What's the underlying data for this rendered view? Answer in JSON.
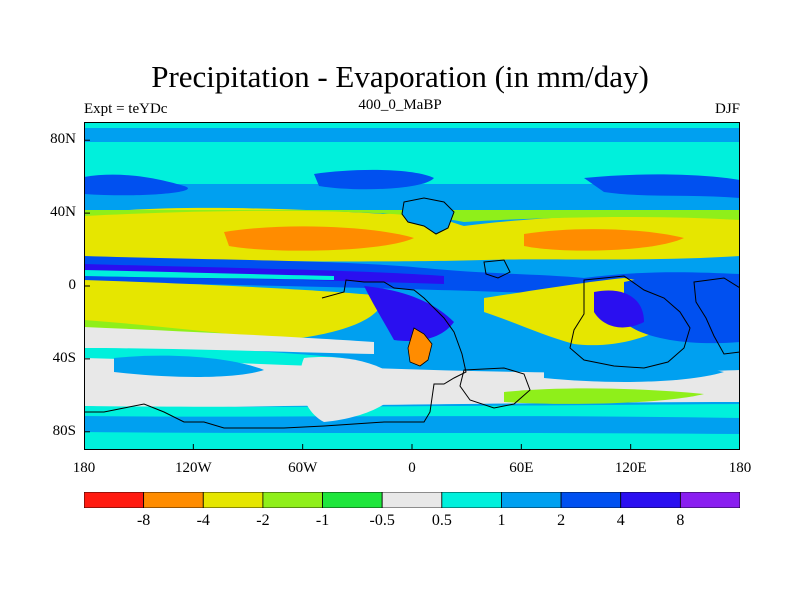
{
  "title": "Precipitation - Evaporation (in mm/day)",
  "left_label": "Expt = teYDc",
  "center_label": "400_0_MaBP",
  "right_label": "DJF",
  "map": {
    "lon_range": [
      -180,
      180
    ],
    "lat_range": [
      -90,
      90
    ],
    "y_ticks": [
      {
        "label": "80N",
        "lat": 80
      },
      {
        "label": "40N",
        "lat": 40
      },
      {
        "label": "0",
        "lat": 0
      },
      {
        "label": "40S",
        "lat": -40
      },
      {
        "label": "80S",
        "lat": -80
      }
    ],
    "x_ticks": [
      {
        "label": "180",
        "lon": -180
      },
      {
        "label": "120W",
        "lon": -120
      },
      {
        "label": "60W",
        "lon": -60
      },
      {
        "label": "0",
        "lon": 0
      },
      {
        "label": "60E",
        "lon": 60
      },
      {
        "label": "120E",
        "lon": 120
      },
      {
        "label": "180",
        "lon": 180
      }
    ]
  },
  "colorbar": {
    "colors": [
      "#ff1a10",
      "#ff8c00",
      "#e6e600",
      "#8fef1a",
      "#1ee63c",
      "#e8e8e8",
      "#00f0dc",
      "#00a0f0",
      "#0050f0",
      "#2a0ff0",
      "#8a1ef0"
    ],
    "labels": [
      "-8",
      "-4",
      "-2",
      "-1",
      "-0.5",
      "0.5",
      "1",
      "2",
      "4",
      "8"
    ]
  }
}
